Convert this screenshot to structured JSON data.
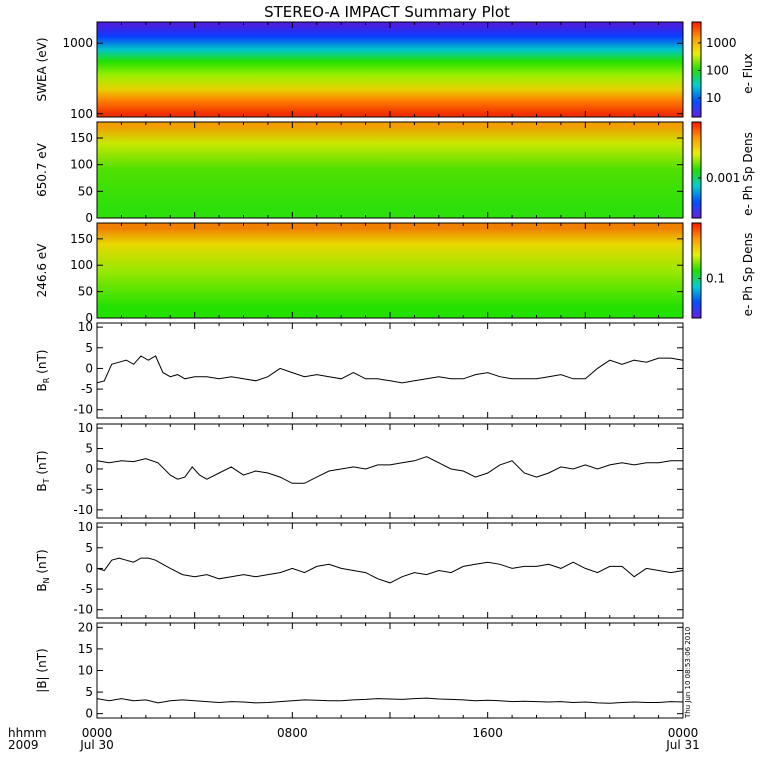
{
  "title": "STEREO-A IMPACT Summary Plot",
  "time_axis": {
    "row_labels": [
      "hhmm",
      "2009"
    ],
    "ticks": [
      {
        "hhmm": "0000",
        "date": "Jul 30"
      },
      {
        "hhmm": "0800",
        "date": ""
      },
      {
        "hhmm": "1600",
        "date": ""
      },
      {
        "hhmm": "0000",
        "date": "Jul 31"
      }
    ],
    "range_hours": [
      0,
      24
    ]
  },
  "timestamp": "Thu Jun 10 08:53:06 2010",
  "colorbars": [
    {
      "label": "e- Flux",
      "ticks": [
        "1000",
        "100",
        "10"
      ],
      "scale": "log"
    },
    {
      "label": "e- Ph Sp Dens",
      "ticks": [
        "0.001"
      ],
      "scale": "log"
    },
    {
      "label": "e- Ph Sp Dens",
      "ticks": [
        "0.1"
      ],
      "scale": "log"
    }
  ],
  "chart_data": [
    {
      "type": "heatmap",
      "ylabel": "SWEA (eV)",
      "yscale": "log",
      "ylim": [
        90,
        2000
      ],
      "yticks": [
        "1000",
        "100"
      ],
      "ytick_values": [
        1000,
        100
      ],
      "x_hours": [
        0,
        2,
        4,
        6,
        8,
        10,
        12,
        14,
        16,
        18,
        20,
        22,
        24
      ],
      "bands": [
        {
          "energy_eV": 1800,
          "color": "#4a1fe0"
        },
        {
          "energy_eV": 1250,
          "color": "#0a3cff"
        },
        {
          "energy_eV": 800,
          "color": "#00c8c8"
        },
        {
          "energy_eV": 550,
          "color": "#22e000"
        },
        {
          "energy_eV": 350,
          "color": "#9bef00"
        },
        {
          "energy_eV": 220,
          "color": "#e8d000"
        },
        {
          "energy_eV": 150,
          "color": "#ff7a00"
        },
        {
          "energy_eV": 100,
          "color": "#f03000"
        }
      ]
    },
    {
      "type": "heatmap",
      "ylabel": "650.7 eV",
      "ylim": [
        0,
        180
      ],
      "yticks": [
        "150",
        "100",
        "50",
        "0"
      ],
      "ytick_values": [
        150,
        100,
        50,
        0
      ],
      "x_hours": [
        0,
        2,
        4,
        6,
        8,
        10,
        12,
        14,
        16,
        18,
        20,
        22,
        24
      ],
      "bands": [
        {
          "pitch_angle": 170,
          "color": "#f0a000"
        },
        {
          "pitch_angle": 140,
          "color": "#c8e800"
        },
        {
          "pitch_angle": 90,
          "color": "#4fe000"
        },
        {
          "pitch_angle": 20,
          "color": "#2ee00a"
        }
      ]
    },
    {
      "type": "heatmap",
      "ylabel": "246.6 eV",
      "ylim": [
        0,
        180
      ],
      "yticks": [
        "150",
        "100",
        "50",
        "0"
      ],
      "ytick_values": [
        150,
        100,
        50,
        0
      ],
      "x_hours": [
        0,
        2,
        4,
        6,
        8,
        10,
        12,
        14,
        16,
        18,
        20,
        22,
        24
      ],
      "bands": [
        {
          "pitch_angle": 170,
          "color": "#f08000"
        },
        {
          "pitch_angle": 140,
          "color": "#e8d800"
        },
        {
          "pitch_angle": 90,
          "color": "#9ae800"
        },
        {
          "pitch_angle": 20,
          "color": "#22e000"
        }
      ]
    },
    {
      "type": "line",
      "ylabel": "B_R (nT)",
      "ylim": [
        -12,
        11
      ],
      "yticks": [
        "10",
        "5",
        "0",
        "-5",
        "-10"
      ],
      "ytick_values": [
        10,
        5,
        0,
        -5,
        -10
      ],
      "x": [
        0,
        0.3,
        0.6,
        0.9,
        1.2,
        1.5,
        1.8,
        2.1,
        2.4,
        2.7,
        3.0,
        3.3,
        3.6,
        4.0,
        4.5,
        5.0,
        5.5,
        6.0,
        6.5,
        7.0,
        7.5,
        8.0,
        8.5,
        9.0,
        9.5,
        10,
        10.5,
        11,
        11.5,
        12,
        12.5,
        13,
        13.5,
        14,
        14.5,
        15,
        15.5,
        16,
        16.5,
        17,
        17.5,
        18,
        18.5,
        19,
        19.5,
        20,
        20.5,
        21,
        21.5,
        22,
        22.5,
        23,
        23.5,
        24
      ],
      "y": [
        -3.5,
        -3,
        1,
        1.5,
        2,
        1,
        3,
        2,
        3,
        -1,
        -2,
        -1.5,
        -2.5,
        -2,
        -2,
        -2.5,
        -2,
        -2.5,
        -3,
        -2,
        0,
        -1,
        -2,
        -1.5,
        -2,
        -2.5,
        -1,
        -2.5,
        -2.5,
        -3,
        -3.5,
        -3,
        -2.5,
        -2,
        -2.5,
        -2.5,
        -1.5,
        -1,
        -2,
        -2.5,
        -2.5,
        -2.5,
        -2,
        -1.5,
        -2.5,
        -2.5,
        0,
        2,
        1,
        2,
        1.5,
        2.5,
        2.5,
        2
      ]
    },
    {
      "type": "line",
      "ylabel": "B_T (nT)",
      "ylim": [
        -12,
        11
      ],
      "yticks": [
        "10",
        "5",
        "0",
        "-5",
        "-10"
      ],
      "ytick_values": [
        10,
        5,
        0,
        -5,
        -10
      ],
      "x": [
        0,
        0.5,
        1.0,
        1.5,
        2.0,
        2.5,
        3.0,
        3.3,
        3.6,
        3.9,
        4.2,
        4.5,
        5.0,
        5.5,
        6.0,
        6.5,
        7.0,
        7.5,
        8.0,
        8.5,
        9.0,
        9.5,
        10,
        10.5,
        11,
        11.5,
        12,
        12.5,
        13,
        13.5,
        14,
        14.5,
        15,
        15.5,
        16,
        16.5,
        17,
        17.5,
        18,
        18.5,
        19,
        19.5,
        20,
        20.5,
        21,
        21.5,
        22,
        22.5,
        23,
        23.5,
        24
      ],
      "y": [
        2,
        1.5,
        2,
        1.8,
        2.5,
        1.5,
        -1.5,
        -2.5,
        -2,
        0.5,
        -1.5,
        -2.5,
        -1,
        0.5,
        -1.5,
        -0.5,
        -1,
        -2,
        -3.5,
        -3.5,
        -2,
        -0.5,
        0,
        0.5,
        0,
        1,
        1,
        1.5,
        2,
        3,
        1.5,
        0,
        -0.5,
        -2,
        -1,
        1,
        2,
        -1,
        -2,
        -1,
        0.5,
        0,
        1,
        0,
        1,
        1.5,
        1,
        1.5,
        1.5,
        2,
        2
      ]
    },
    {
      "type": "line",
      "ylabel": "B_N (nT)",
      "ylim": [
        -12,
        11
      ],
      "yticks": [
        "10",
        "5",
        "0",
        "-5",
        "-10"
      ],
      "ytick_values": [
        10,
        5,
        0,
        -5,
        -10
      ],
      "x": [
        0,
        0.3,
        0.6,
        0.9,
        1.2,
        1.5,
        1.8,
        2.1,
        2.4,
        2.7,
        3.0,
        3.5,
        4.0,
        4.5,
        5.0,
        5.5,
        6.0,
        6.5,
        7.0,
        7.5,
        8.0,
        8.5,
        9.0,
        9.5,
        10,
        10.5,
        11,
        11.5,
        12,
        12.5,
        13,
        13.5,
        14,
        14.5,
        15,
        15.5,
        16,
        16.5,
        17,
        17.5,
        18,
        18.5,
        19,
        19.5,
        20,
        20.5,
        21,
        21.5,
        22,
        22.5,
        23,
        23.5,
        24
      ],
      "y": [
        0,
        -0.5,
        2,
        2.5,
        2,
        1.5,
        2.5,
        2.5,
        2,
        1,
        0,
        -1.5,
        -2,
        -1.5,
        -2.5,
        -2,
        -1.5,
        -2,
        -1.5,
        -1,
        0,
        -1,
        0.5,
        1,
        0,
        -0.5,
        -1,
        -2.5,
        -3.5,
        -2,
        -1,
        -1.5,
        -0.5,
        -1,
        0.5,
        1,
        1.5,
        1,
        0,
        0.5,
        0.5,
        1,
        0,
        1.5,
        0,
        -1,
        0.5,
        0.5,
        -2,
        0,
        -0.5,
        -1,
        -0.5
      ]
    },
    {
      "type": "line",
      "ylabel": "|B| (nT)",
      "ylim": [
        -1,
        21
      ],
      "yticks": [
        "20",
        "15",
        "10",
        "5",
        "0"
      ],
      "ytick_values": [
        20,
        15,
        10,
        5,
        0
      ],
      "x": [
        0,
        0.5,
        1.0,
        1.5,
        2.0,
        2.5,
        3.0,
        3.5,
        4.0,
        4.5,
        5.0,
        5.5,
        6.0,
        6.5,
        7.0,
        7.5,
        8.0,
        8.5,
        9.0,
        9.5,
        10,
        10.5,
        11,
        11.5,
        12,
        12.5,
        13,
        13.5,
        14,
        14.5,
        15,
        15.5,
        16,
        16.5,
        17,
        17.5,
        18,
        18.5,
        19,
        19.5,
        20,
        20.5,
        21,
        21.5,
        22,
        22.5,
        23,
        23.5,
        24
      ],
      "y": [
        3.5,
        3.0,
        3.5,
        3.0,
        3.2,
        2.5,
        3.0,
        3.2,
        3.0,
        2.8,
        2.6,
        2.8,
        2.7,
        2.5,
        2.6,
        2.8,
        3.0,
        3.2,
        3.1,
        3.0,
        3.0,
        3.2,
        3.3,
        3.5,
        3.4,
        3.3,
        3.5,
        3.6,
        3.4,
        3.3,
        3.2,
        3.0,
        3.1,
        3.0,
        2.8,
        2.9,
        2.8,
        2.7,
        2.8,
        2.6,
        2.7,
        2.5,
        2.4,
        2.6,
        2.7,
        2.6,
        2.6,
        2.8,
        2.7
      ]
    }
  ]
}
